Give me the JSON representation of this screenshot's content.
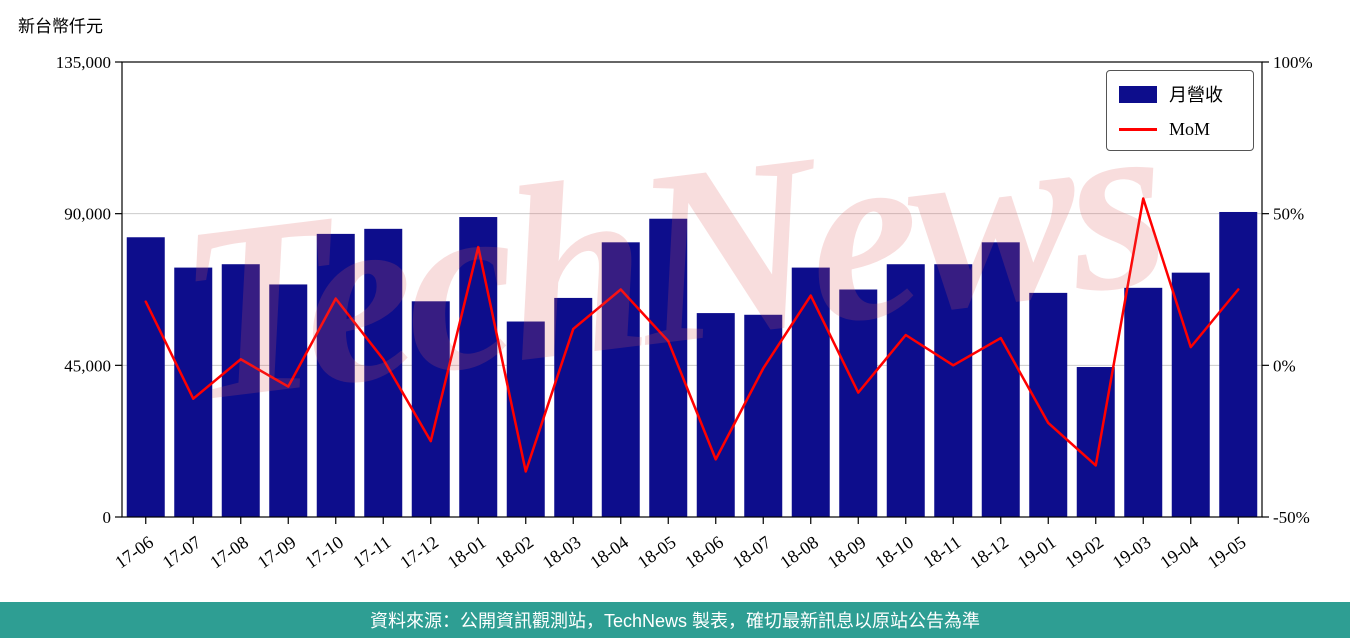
{
  "watermark": {
    "text": "TechNews"
  },
  "legend": {
    "revenue_label": "月營收",
    "mom_label": "MoM"
  },
  "footer": {
    "text": "資料來源：公開資訊觀測站，TechNews 製表，確切最新訊息以原站公告為準"
  },
  "colors": {
    "bar": "#0d0d8c",
    "line": "#ff0000",
    "grid": "#cccccc",
    "axis": "#000000",
    "footer_bg": "#2e9e93",
    "watermark": "#e05c5c"
  },
  "chart_data": {
    "type": "bar+line",
    "categories": [
      "17-06",
      "17-07",
      "17-08",
      "17-09",
      "17-10",
      "17-11",
      "17-12",
      "18-01",
      "18-02",
      "18-03",
      "18-04",
      "18-05",
      "18-06",
      "18-07",
      "18-08",
      "18-09",
      "18-10",
      "18-11",
      "18-12",
      "19-01",
      "19-02",
      "19-03",
      "19-04",
      "19-05"
    ],
    "series": [
      {
        "name": "月營收",
        "type": "bar",
        "axis": "left",
        "values": [
          83000,
          74000,
          75000,
          69000,
          84000,
          85500,
          64000,
          89000,
          58000,
          65000,
          81500,
          88500,
          60500,
          60000,
          74000,
          67500,
          75000,
          75000,
          81500,
          66500,
          44500,
          68000,
          72500,
          90500
        ]
      },
      {
        "name": "MoM",
        "type": "line",
        "axis": "right",
        "values": [
          21,
          -11,
          2,
          -7,
          22,
          2,
          -25,
          39,
          -35,
          12,
          25,
          8,
          -31,
          -1,
          23,
          -9,
          10,
          0,
          9,
          -19,
          -33,
          55,
          6,
          25
        ]
      }
    ],
    "left_axis": {
      "unit_label": "新台幣仟元",
      "range": [
        0,
        135000
      ],
      "ticks": [
        0,
        45000,
        90000,
        135000
      ],
      "tick_labels": [
        "0",
        "45,000",
        "90,000",
        "135,000"
      ]
    },
    "right_axis": {
      "range": [
        -50,
        100
      ],
      "ticks": [
        -50,
        0,
        50,
        100
      ],
      "tick_labels": [
        "-50%",
        "0%",
        "50%",
        "100%"
      ]
    },
    "grid": "horizontal",
    "legend_position": "top-right"
  }
}
